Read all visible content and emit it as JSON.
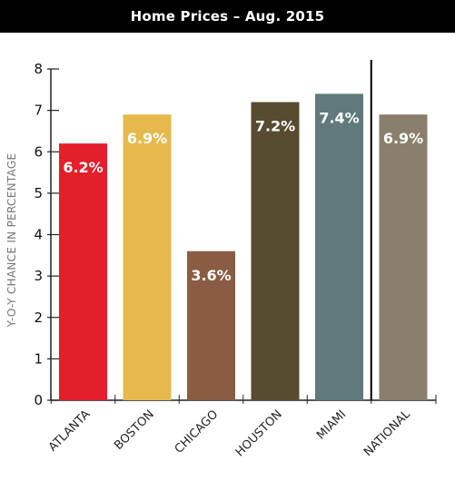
{
  "header": {
    "title": "Home Prices – Aug. 2015"
  },
  "chart_data": {
    "type": "bar",
    "title": "Home Prices – Aug. 2015",
    "xlabel": "",
    "ylabel": "Y-O-Y CHANCE IN PERCENTAGE",
    "ylim": [
      0,
      8
    ],
    "yticks": [
      0,
      1,
      2,
      3,
      4,
      5,
      6,
      7,
      8
    ],
    "grid": false,
    "categories": [
      "ATLANTA",
      "BOSTON",
      "CHICAGO",
      "HOUSTON",
      "MIAMI",
      "NATIONAL"
    ],
    "values": [
      6.2,
      6.9,
      3.6,
      7.2,
      7.4,
      6.9
    ],
    "data_labels": [
      "6.2%",
      "6.9%",
      "3.6%",
      "7.2%",
      "7.4%",
      "6.9%"
    ],
    "colors": [
      "#e31f2a",
      "#e5b94c",
      "#8a5c44",
      "#574b30",
      "#607a7c",
      "#8a7f6c"
    ]
  }
}
